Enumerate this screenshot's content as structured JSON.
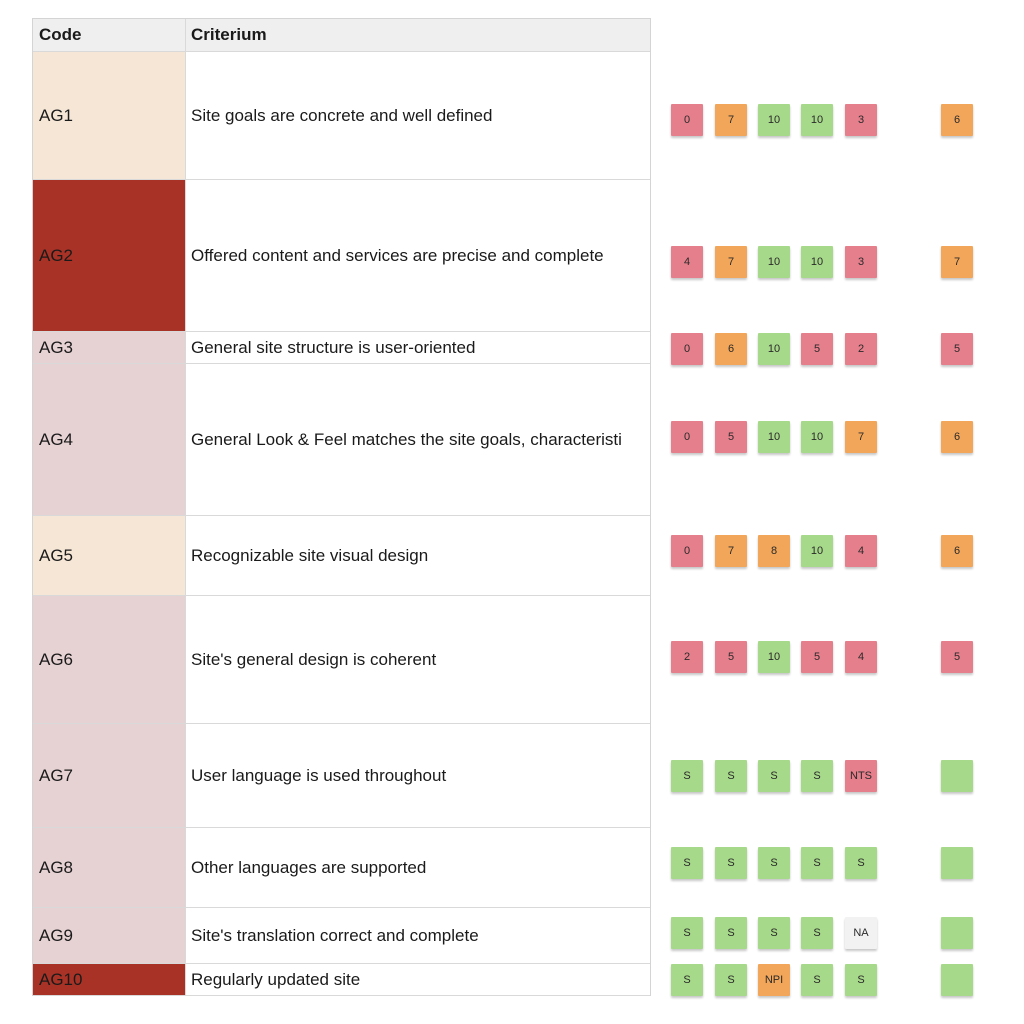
{
  "sheet": {
    "headers": {
      "code": "Code",
      "criterium": "Criterium"
    },
    "rows": [
      {
        "code": "AG1",
        "criterium": "Site goals are concrete and well defined",
        "tone": "beige"
      },
      {
        "code": "AG2",
        "criterium": "Offered content and services are precise and complete",
        "tone": "red"
      },
      {
        "code": "AG3",
        "criterium": "General site structure is user-oriented",
        "tone": "pink"
      },
      {
        "code": "AG4",
        "criterium": "General Look & Feel matches the site goals, characteristi",
        "tone": "pink"
      },
      {
        "code": "AG5",
        "criterium": "Recognizable site visual design",
        "tone": "beige"
      },
      {
        "code": "AG6",
        "criterium": "Site's general design is coherent",
        "tone": "pink"
      },
      {
        "code": "AG7",
        "criterium": "User language is used throughout",
        "tone": "pink"
      },
      {
        "code": "AG8",
        "criterium": "Other languages are supported",
        "tone": "pink"
      },
      {
        "code": "AG9",
        "criterium": "Site's translation correct and complete",
        "tone": "pink"
      },
      {
        "code": "AG10",
        "criterium": "Regularly updated site",
        "tone": "red"
      }
    ]
  },
  "notes": [
    {
      "row": "AG1",
      "values": [
        {
          "text": "0",
          "color": "red"
        },
        {
          "text": "7",
          "color": "orange"
        },
        {
          "text": "10",
          "color": "green"
        },
        {
          "text": "10",
          "color": "green"
        },
        {
          "text": "3",
          "color": "red"
        }
      ],
      "summary": {
        "text": "6",
        "color": "orange"
      }
    },
    {
      "row": "AG2",
      "values": [
        {
          "text": "4",
          "color": "red"
        },
        {
          "text": "7",
          "color": "orange"
        },
        {
          "text": "10",
          "color": "green"
        },
        {
          "text": "10",
          "color": "green"
        },
        {
          "text": "3",
          "color": "red"
        }
      ],
      "summary": {
        "text": "7",
        "color": "orange"
      }
    },
    {
      "row": "AG3",
      "values": [
        {
          "text": "0",
          "color": "red"
        },
        {
          "text": "6",
          "color": "orange"
        },
        {
          "text": "10",
          "color": "green"
        },
        {
          "text": "5",
          "color": "red"
        },
        {
          "text": "2",
          "color": "red"
        }
      ],
      "summary": {
        "text": "5",
        "color": "red"
      }
    },
    {
      "row": "AG4",
      "values": [
        {
          "text": "0",
          "color": "red"
        },
        {
          "text": "5",
          "color": "red"
        },
        {
          "text": "10",
          "color": "green"
        },
        {
          "text": "10",
          "color": "green"
        },
        {
          "text": "7",
          "color": "orange"
        }
      ],
      "summary": {
        "text": "6",
        "color": "orange"
      }
    },
    {
      "row": "AG5",
      "values": [
        {
          "text": "0",
          "color": "red"
        },
        {
          "text": "7",
          "color": "orange"
        },
        {
          "text": "8",
          "color": "orange"
        },
        {
          "text": "10",
          "color": "green"
        },
        {
          "text": "4",
          "color": "red"
        }
      ],
      "summary": {
        "text": "6",
        "color": "orange"
      }
    },
    {
      "row": "AG6",
      "values": [
        {
          "text": "2",
          "color": "red"
        },
        {
          "text": "5",
          "color": "red"
        },
        {
          "text": "10",
          "color": "green"
        },
        {
          "text": "5",
          "color": "red"
        },
        {
          "text": "4",
          "color": "red"
        }
      ],
      "summary": {
        "text": "5",
        "color": "red"
      }
    },
    {
      "row": "AG7",
      "values": [
        {
          "text": "S",
          "color": "green"
        },
        {
          "text": "S",
          "color": "green"
        },
        {
          "text": "S",
          "color": "green"
        },
        {
          "text": "S",
          "color": "green"
        },
        {
          "text": "NTS",
          "color": "red"
        }
      ],
      "summary": {
        "text": "",
        "color": "green"
      }
    },
    {
      "row": "AG8",
      "values": [
        {
          "text": "S",
          "color": "green"
        },
        {
          "text": "S",
          "color": "green"
        },
        {
          "text": "S",
          "color": "green"
        },
        {
          "text": "S",
          "color": "green"
        },
        {
          "text": "S",
          "color": "green"
        }
      ],
      "summary": {
        "text": "",
        "color": "green"
      }
    },
    {
      "row": "AG9",
      "values": [
        {
          "text": "S",
          "color": "green"
        },
        {
          "text": "S",
          "color": "green"
        },
        {
          "text": "S",
          "color": "green"
        },
        {
          "text": "S",
          "color": "green"
        },
        {
          "text": "NA",
          "color": "white"
        }
      ],
      "summary": {
        "text": "",
        "color": "green"
      }
    },
    {
      "row": "AG10",
      "values": [
        {
          "text": "S",
          "color": "green"
        },
        {
          "text": "S",
          "color": "green"
        },
        {
          "text": "NPI",
          "color": "orange"
        },
        {
          "text": "S",
          "color": "green"
        },
        {
          "text": "S",
          "color": "green"
        }
      ],
      "summary": {
        "text": "",
        "color": "green"
      }
    }
  ],
  "colors": {
    "red": "#e57f8c",
    "orange": "#f2a65a",
    "green": "#a7d98a",
    "white": "#f2f2f2",
    "tone_beige": "#f5e6d6",
    "tone_red": "#a93226",
    "tone_pink": "#e6d1d3"
  }
}
